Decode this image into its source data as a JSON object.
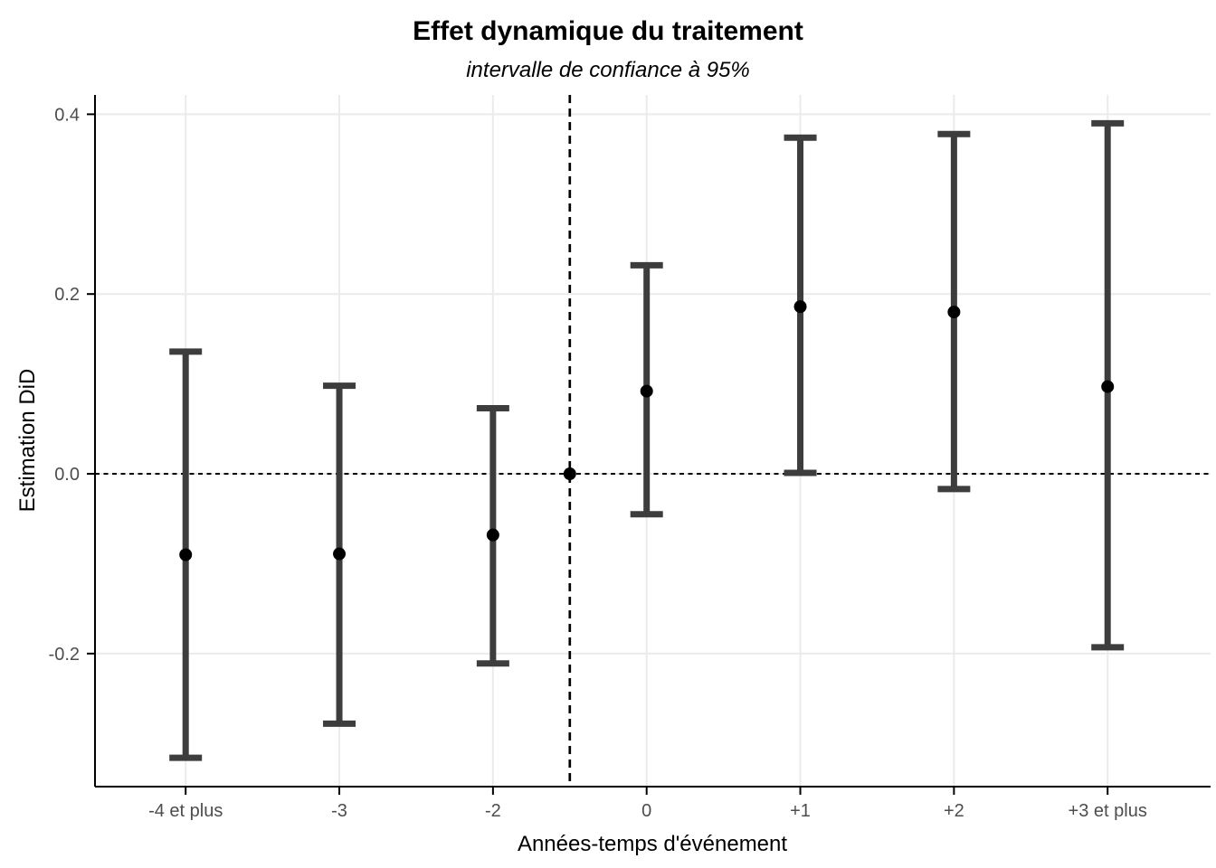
{
  "chart_data": {
    "type": "errorbar",
    "title": "Effet dynamique du traitement",
    "subtitle": "intervalle de confiance à 95%",
    "xlabel": "Années-temps d'événement",
    "ylabel": "Estimation DiD",
    "legend": "none",
    "grid": "major-light",
    "xlim": [
      -0.59,
      6.67
    ],
    "ylim": [
      -0.348,
      0.4215
    ],
    "y_ticks": [
      {
        "value": 0.4,
        "label": "0.4"
      },
      {
        "value": 0.2,
        "label": "0.2"
      },
      {
        "value": 0.0,
        "label": "0.0"
      },
      {
        "value": -0.2,
        "label": "-0.2"
      }
    ],
    "categories": [
      {
        "label": "-4 et plus",
        "pos": 0
      },
      {
        "label": "-3",
        "pos": 1
      },
      {
        "label": "-2",
        "pos": 2
      },
      {
        "label": "0",
        "pos": 3
      },
      {
        "label": "+1",
        "pos": 4
      },
      {
        "label": "+2",
        "pos": 5
      },
      {
        "label": "+3 et plus",
        "pos": 6
      }
    ],
    "series": [
      {
        "name": "Estimation DiD",
        "points": [
          {
            "category": "-4 et plus",
            "pos": 0,
            "estimate": -0.09,
            "ci_low": -0.316,
            "ci_high": 0.136
          },
          {
            "category": "-3",
            "pos": 1,
            "estimate": -0.089,
            "ci_low": -0.278,
            "ci_high": 0.098
          },
          {
            "category": "-2",
            "pos": 2,
            "estimate": -0.068,
            "ci_low": -0.211,
            "ci_high": 0.073
          },
          {
            "category": "0",
            "pos": 3,
            "estimate": 0.092,
            "ci_low": -0.045,
            "ci_high": 0.232
          },
          {
            "category": "+1",
            "pos": 4,
            "estimate": 0.186,
            "ci_low": 0.001,
            "ci_high": 0.374
          },
          {
            "category": "+2",
            "pos": 5,
            "estimate": 0.18,
            "ci_low": -0.017,
            "ci_high": 0.378
          },
          {
            "category": "+3 et plus",
            "pos": 6,
            "estimate": 0.097,
            "ci_low": -0.193,
            "ci_high": 0.39
          }
        ]
      }
    ],
    "reference_point": {
      "pos": 2.5,
      "estimate": 0.0
    },
    "hline": {
      "y": 0.0,
      "style": "dotted"
    },
    "vline": {
      "pos": 2.5,
      "style": "dashed"
    },
    "colors": {
      "errorbar": "#3d3d3d",
      "point": "#000000",
      "grid": "#ebebeb",
      "axis": "#000000",
      "tick_label": "#4d4d4d",
      "refline": "#000000",
      "background": "#ffffff"
    }
  }
}
